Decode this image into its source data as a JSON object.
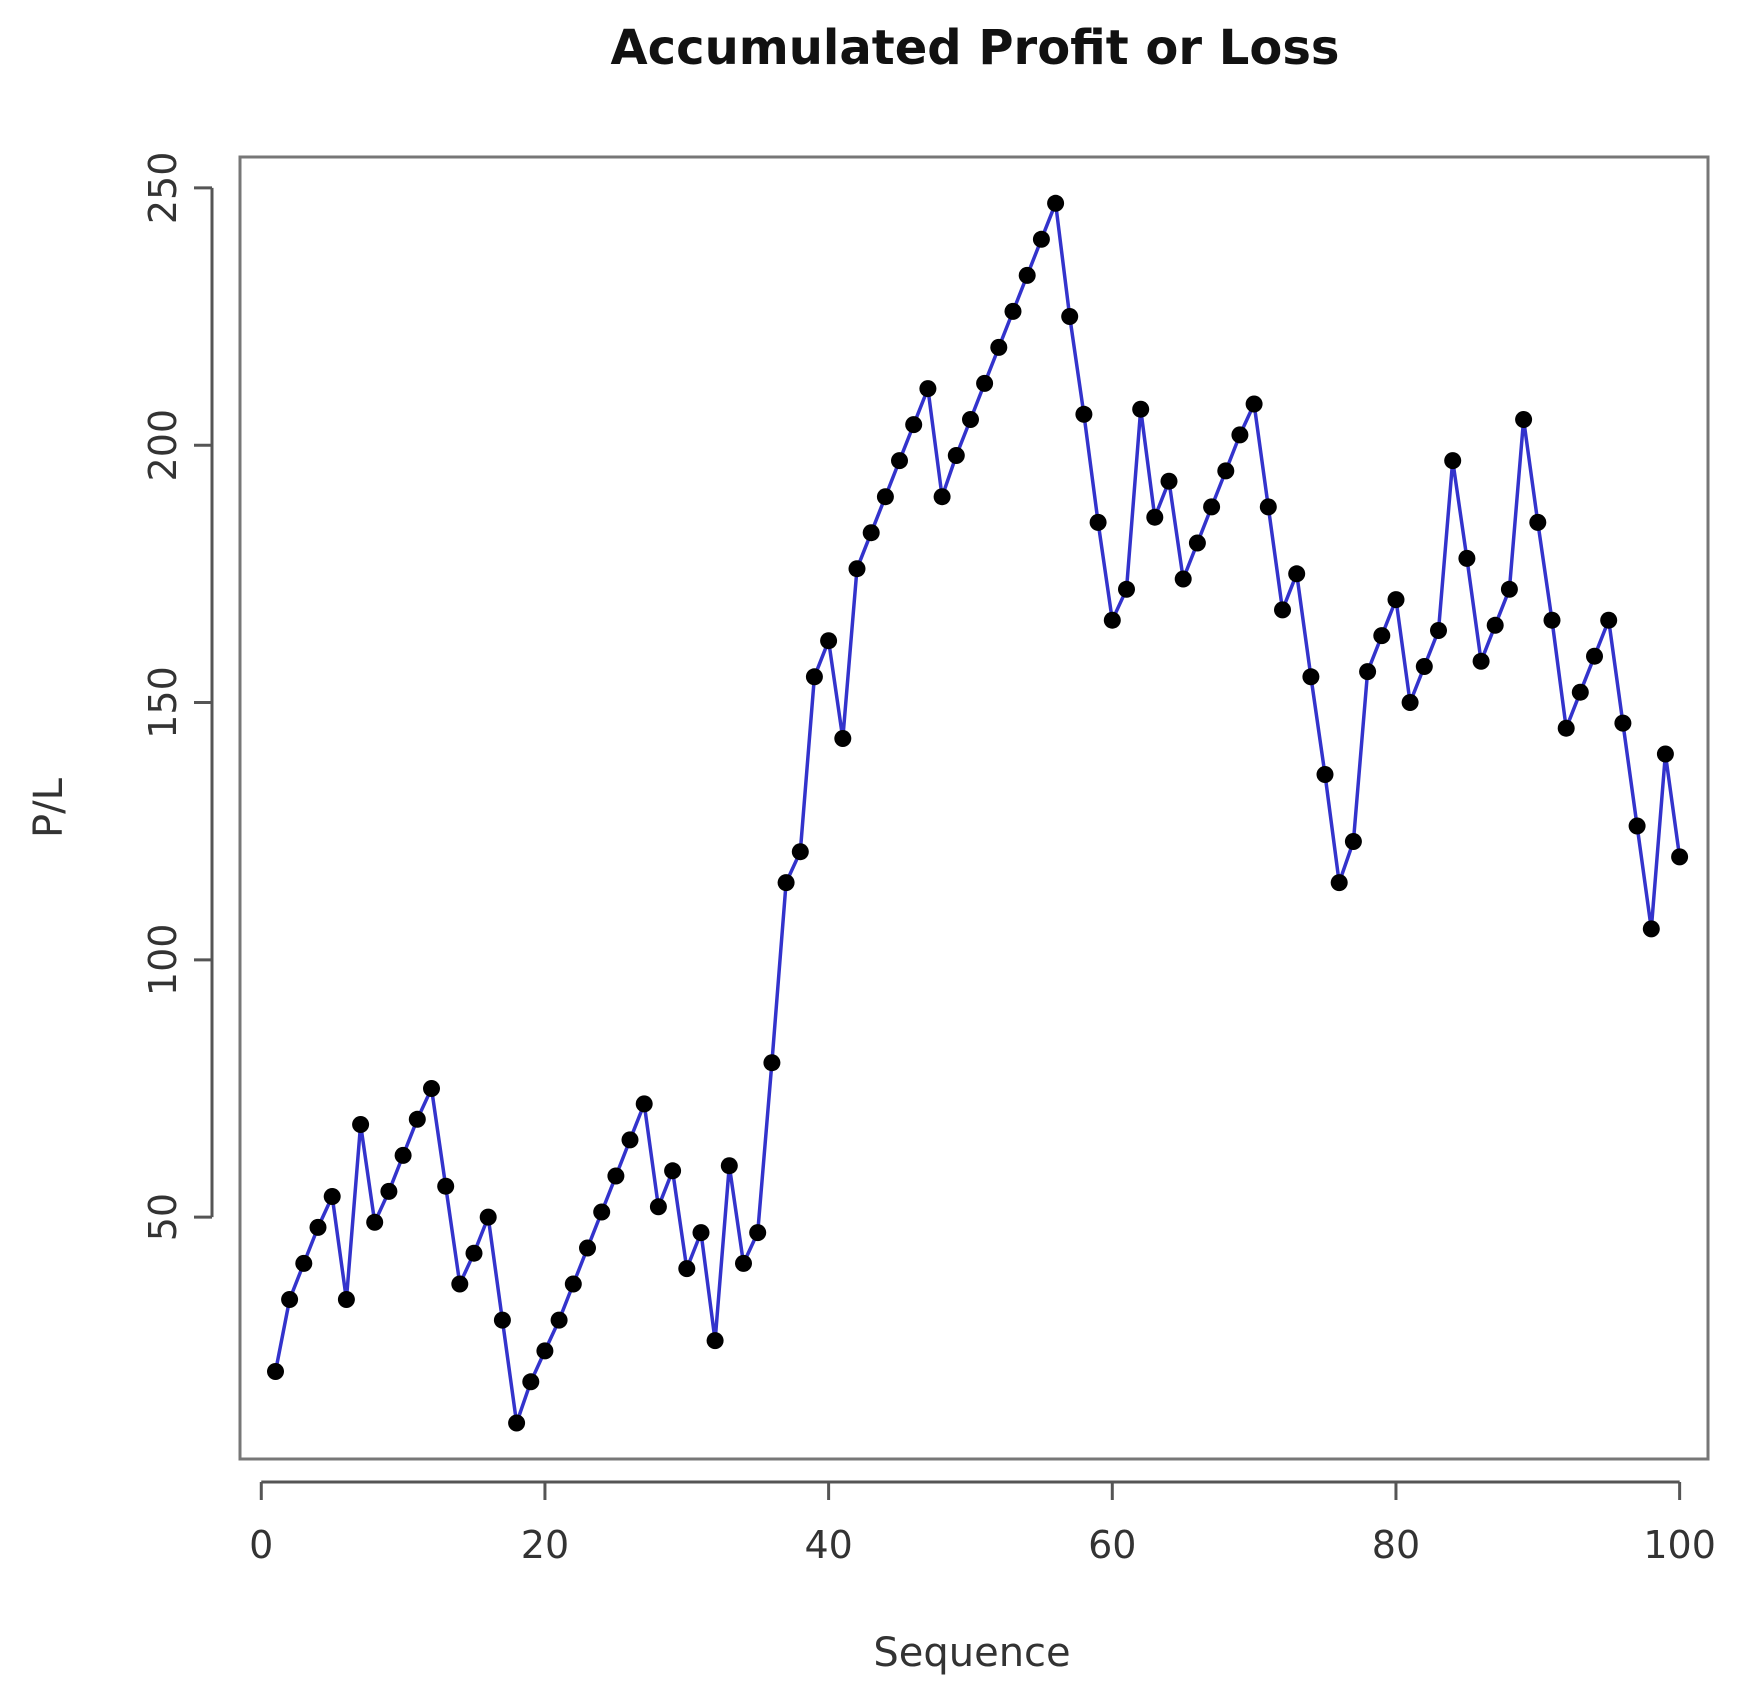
{
  "chart_data": {
    "type": "line",
    "title": "Accumulated Profit or Loss",
    "xlabel": "Sequence",
    "ylabel": "P/L",
    "xlim": [
      -1.5,
      102
    ],
    "ylim": [
      3,
      256
    ],
    "xticks": [
      0,
      20,
      40,
      60,
      80,
      100
    ],
    "yticks": [
      50,
      100,
      150,
      200,
      250
    ],
    "grid": false,
    "legend": "none",
    "colors": {
      "line": "#3333cc",
      "point": "#000000"
    },
    "series": [
      {
        "x": [
          1,
          2,
          3,
          4,
          5,
          6,
          7,
          8,
          9,
          10,
          11,
          12,
          13,
          14,
          15,
          16,
          17,
          18,
          19,
          20,
          21,
          22,
          23,
          24,
          25,
          26,
          27,
          28,
          29,
          30,
          31,
          32,
          33,
          34,
          35,
          36,
          37,
          38,
          39,
          40,
          41,
          42,
          43,
          44,
          45,
          46,
          47,
          48,
          49,
          50,
          51,
          52,
          53,
          54,
          55,
          56,
          57,
          58,
          59,
          60,
          61,
          62,
          63,
          64,
          65,
          66,
          67,
          68,
          69,
          70,
          71,
          72,
          73,
          74,
          75,
          76,
          77,
          78,
          79,
          80,
          81,
          82,
          83,
          84,
          85,
          86,
          87,
          88,
          89,
          90,
          91,
          92,
          93,
          94,
          95,
          96,
          97,
          98,
          99,
          100
        ],
        "values": [
          20,
          34,
          41,
          48,
          54,
          34,
          68,
          49,
          55,
          62,
          69,
          75,
          56,
          37,
          43,
          50,
          30,
          10,
          18,
          24,
          30,
          37,
          44,
          51,
          58,
          65,
          72,
          52,
          59,
          40,
          47,
          26,
          60,
          41,
          47,
          80,
          115,
          121,
          155,
          162,
          143,
          176,
          183,
          190,
          197,
          204,
          211,
          190,
          198,
          205,
          212,
          219,
          226,
          233,
          240,
          247,
          225,
          206,
          185,
          166,
          172,
          207,
          186,
          193,
          174,
          181,
          188,
          195,
          202,
          208,
          188,
          168,
          175,
          155,
          136,
          115,
          123,
          156,
          163,
          170,
          150,
          157,
          164,
          197,
          178,
          158,
          165,
          172,
          205,
          185,
          166,
          145,
          152,
          159,
          166,
          146,
          126,
          106,
          140,
          120
        ]
      }
    ]
  }
}
